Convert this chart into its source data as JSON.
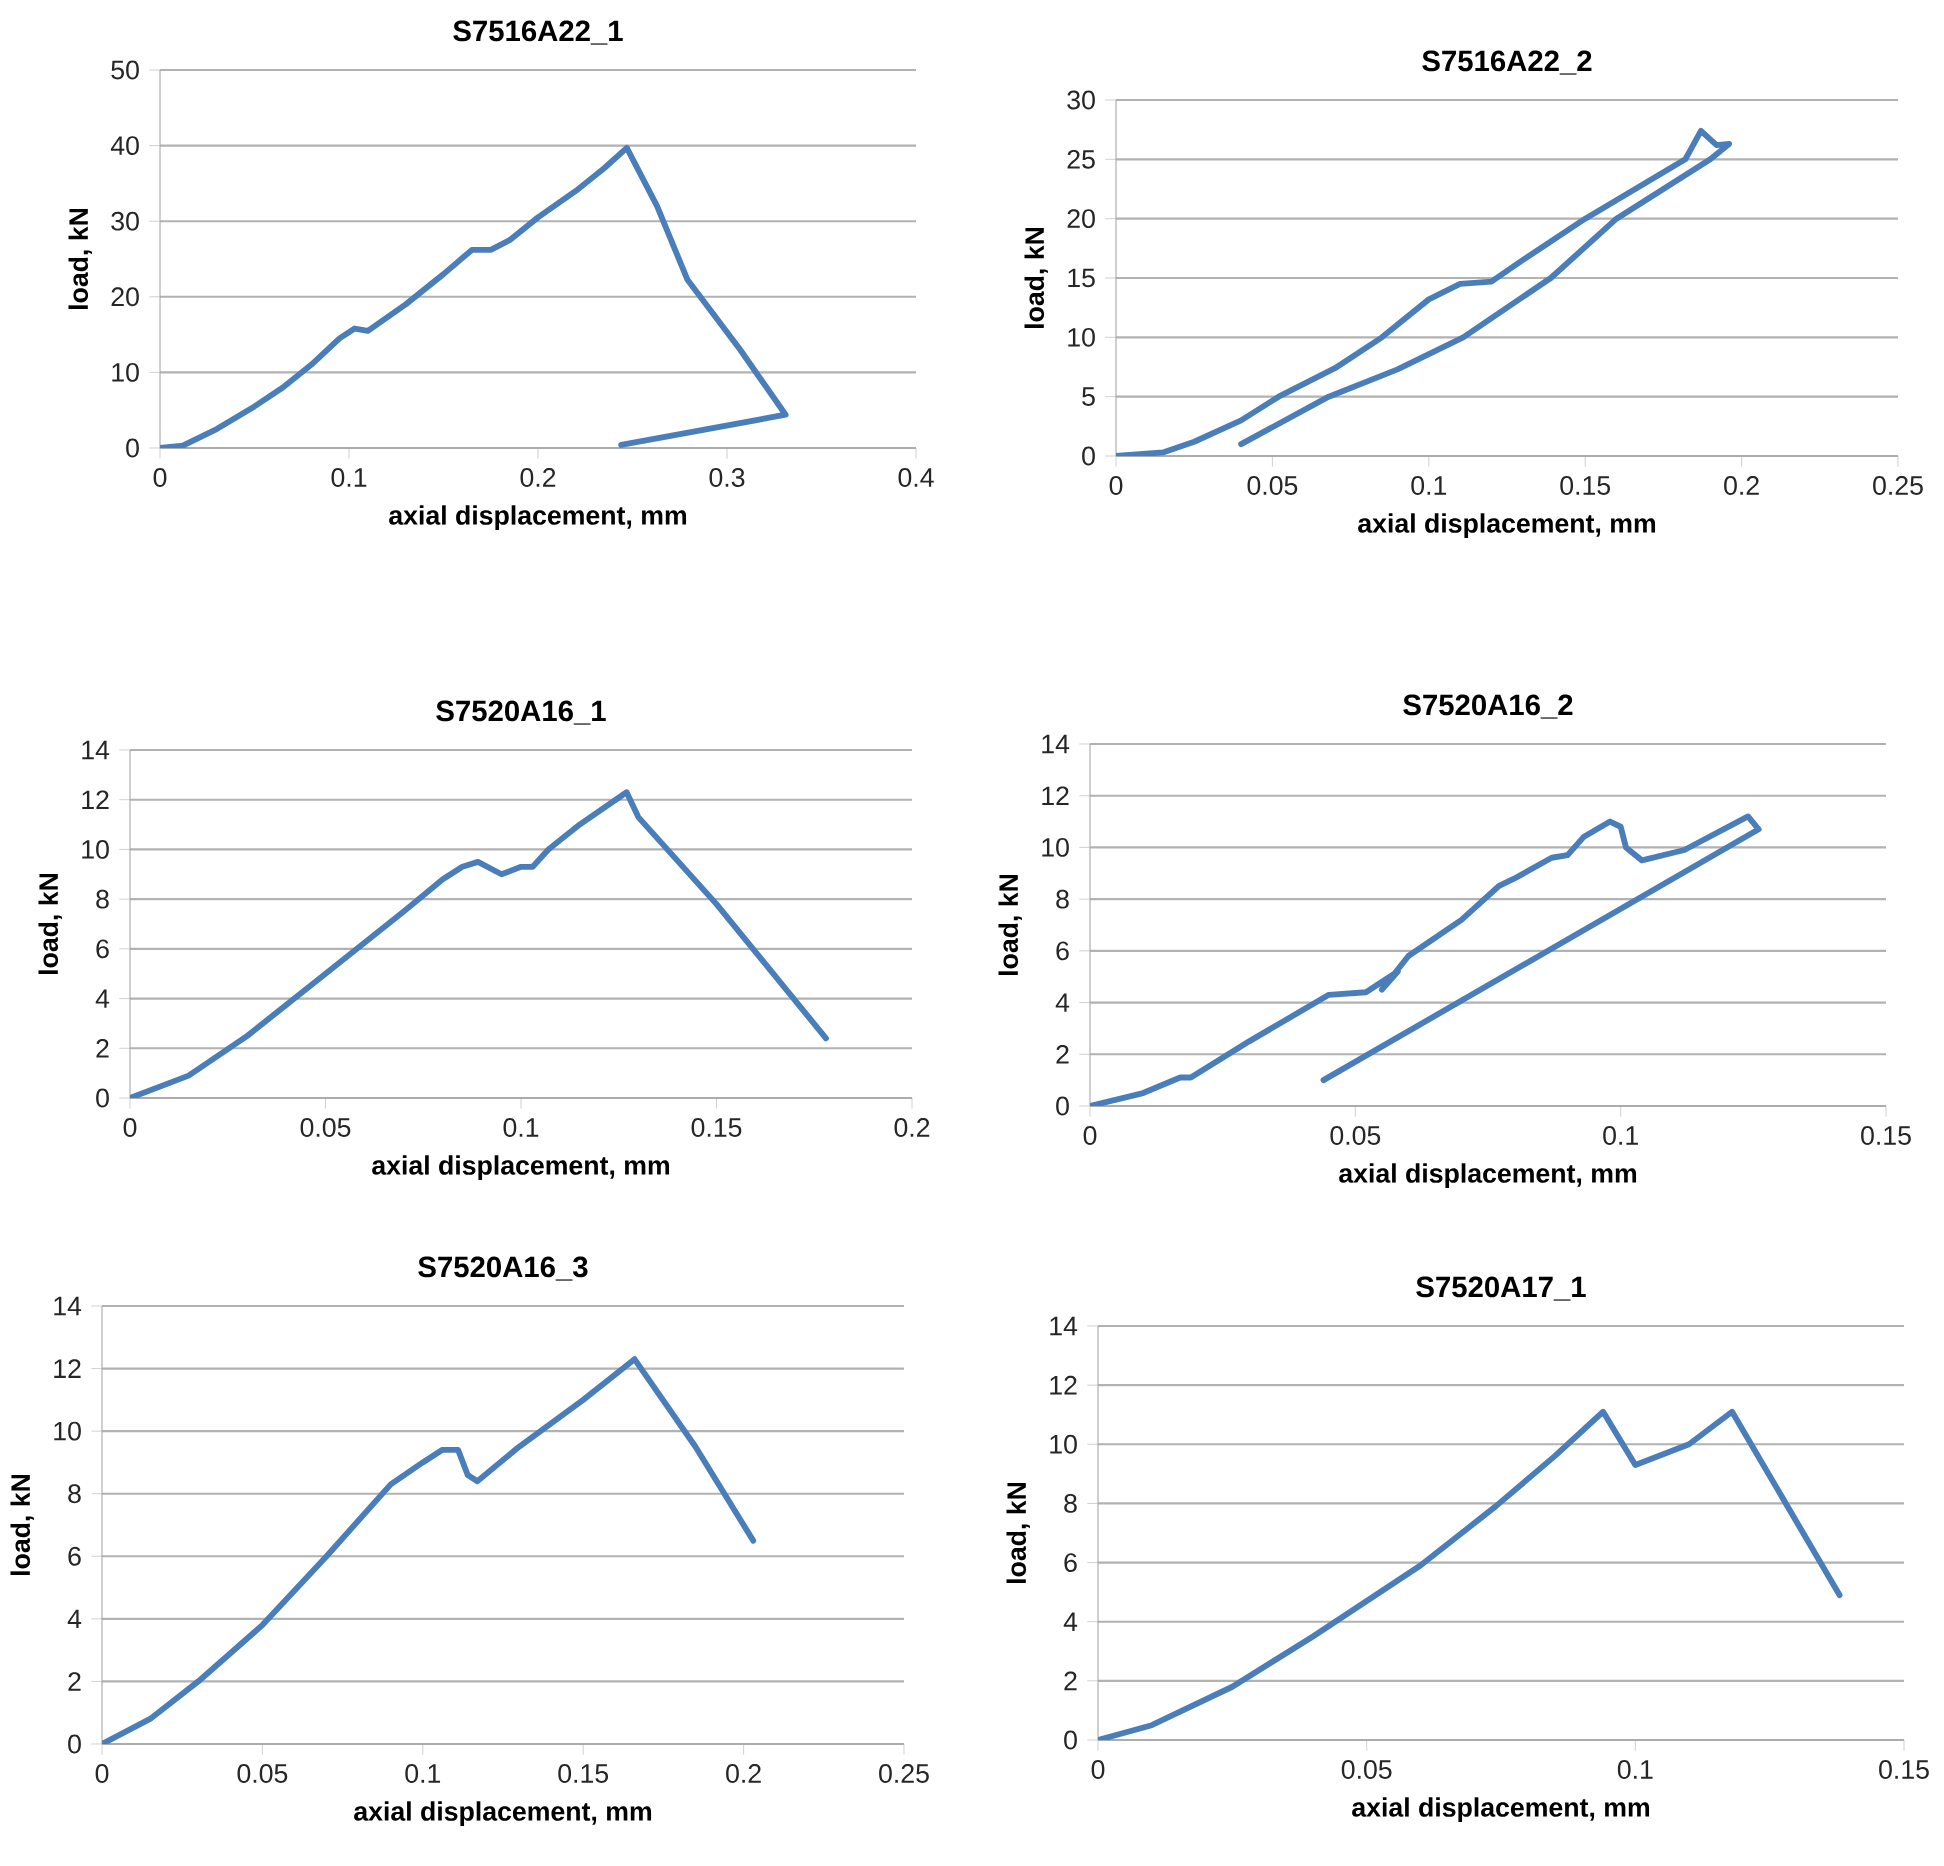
{
  "chart_data": [
    {
      "type": "line",
      "title": "S7516A22_1",
      "xlabel": "axial displacement, mm",
      "ylabel": "load, kN",
      "xlim": [
        0,
        0.4
      ],
      "ylim": [
        0,
        50
      ],
      "xticks": [
        0,
        0.1,
        0.2,
        0.3,
        0.4
      ],
      "yticks": [
        0,
        10,
        20,
        30,
        40,
        50
      ],
      "grid": "y",
      "series": [
        {
          "color": "#4a7ebb",
          "x": [
            0,
            0.012,
            0.03,
            0.05,
            0.065,
            0.08,
            0.095,
            0.103,
            0.11,
            0.13,
            0.15,
            0.165,
            0.175,
            0.185,
            0.2,
            0.22,
            0.235,
            0.247,
            0.263,
            0.279,
            0.307,
            0.331,
            0.244
          ],
          "values": [
            0,
            0.3,
            2.5,
            5.5,
            8,
            11,
            14.5,
            15.8,
            15.5,
            19,
            23,
            26.2,
            26.2,
            27.5,
            30.5,
            34,
            37,
            39.7,
            32,
            22.3,
            13,
            4.4,
            0.4
          ]
        }
      ]
    },
    {
      "type": "line",
      "title": "S7516A22_2",
      "xlabel": "axial displacement, mm",
      "ylabel": "load, kN",
      "xlim": [
        0,
        0.25
      ],
      "ylim": [
        0,
        30
      ],
      "xticks": [
        0,
        0.05,
        0.1,
        0.15,
        0.2,
        0.25
      ],
      "yticks": [
        0,
        5,
        10,
        15,
        20,
        25,
        30
      ],
      "grid": "y",
      "series": [
        {
          "color": "#4a7ebb",
          "x": [
            0,
            0.015,
            0.025,
            0.04,
            0.052,
            0.07,
            0.085,
            0.1,
            0.11,
            0.12,
            0.13,
            0.15,
            0.182,
            0.187,
            0.192,
            0.196,
            0.19,
            0.16,
            0.139,
            0.111,
            0.09,
            0.068,
            0.04
          ],
          "values": [
            0,
            0.3,
            1.2,
            3,
            5,
            7.4,
            10,
            13.2,
            14.5,
            14.7,
            16.5,
            20,
            25,
            27.4,
            26.2,
            26.3,
            25,
            20,
            15,
            10,
            7.3,
            5,
            1
          ]
        }
      ]
    },
    {
      "type": "line",
      "title": "S7520A16_1",
      "xlabel": "axial displacement, mm",
      "ylabel": "load, kN",
      "xlim": [
        0,
        0.2
      ],
      "ylim": [
        0,
        14
      ],
      "xticks": [
        0,
        0.05,
        0.1,
        0.15,
        0.2
      ],
      "yticks": [
        0,
        2,
        4,
        6,
        8,
        10,
        12,
        14
      ],
      "grid": "y",
      "series": [
        {
          "color": "#4a7ebb",
          "x": [
            0,
            0.015,
            0.03,
            0.05,
            0.07,
            0.08,
            0.085,
            0.089,
            0.095,
            0.1,
            0.103,
            0.107,
            0.115,
            0.127,
            0.13,
            0.15,
            0.178
          ],
          "values": [
            0,
            0.9,
            2.5,
            5,
            7.5,
            8.8,
            9.3,
            9.5,
            9,
            9.3,
            9.3,
            10,
            11,
            12.3,
            11.3,
            7.8,
            2.4
          ]
        }
      ]
    },
    {
      "type": "line",
      "title": "S7520A16_2",
      "xlabel": "axial displacement, mm",
      "ylabel": "load, kN",
      "xlim": [
        0,
        0.15
      ],
      "ylim": [
        0,
        14
      ],
      "xticks": [
        0,
        0.05,
        0.1,
        0.15
      ],
      "yticks": [
        0,
        2,
        4,
        6,
        8,
        10,
        12,
        14
      ],
      "grid": "y",
      "series": [
        {
          "color": "#4a7ebb",
          "x": [
            0,
            0.01,
            0.017,
            0.019,
            0.03,
            0.045,
            0.052,
            0.058,
            0.055,
            0.06,
            0.07,
            0.077,
            0.08,
            0.087,
            0.09,
            0.093,
            0.098,
            0.1,
            0.101,
            0.104,
            0.112,
            0.124,
            0.126,
            0.044
          ],
          "values": [
            0,
            0.5,
            1.1,
            1.1,
            2.5,
            4.3,
            4.4,
            5.2,
            4.5,
            5.8,
            7.2,
            8.5,
            8.8,
            9.6,
            9.7,
            10.4,
            11,
            10.8,
            10,
            9.5,
            9.9,
            11.2,
            10.7,
            1
          ]
        }
      ]
    },
    {
      "type": "line",
      "title": "S7520A16_3",
      "xlabel": "axial displacement, mm",
      "ylabel": "load, kN",
      "xlim": [
        0,
        0.25
      ],
      "ylim": [
        0,
        14
      ],
      "xticks": [
        0,
        0.05,
        0.1,
        0.15,
        0.2,
        0.25
      ],
      "yticks": [
        0,
        2,
        4,
        6,
        8,
        10,
        12,
        14
      ],
      "grid": "y",
      "series": [
        {
          "color": "#4a7ebb",
          "x": [
            0,
            0.015,
            0.03,
            0.05,
            0.07,
            0.09,
            0.1,
            0.106,
            0.111,
            0.114,
            0.117,
            0.13,
            0.15,
            0.166,
            0.185,
            0.203
          ],
          "values": [
            0,
            0.8,
            2,
            3.8,
            6,
            8.3,
            9,
            9.4,
            9.4,
            8.6,
            8.4,
            9.5,
            11,
            12.3,
            9.5,
            6.5
          ]
        }
      ]
    },
    {
      "type": "line",
      "title": "S7520A17_1",
      "xlabel": "axial displacement, mm",
      "ylabel": "load, kN",
      "xlim": [
        0,
        0.15
      ],
      "ylim": [
        0,
        14
      ],
      "xticks": [
        0,
        0.05,
        0.1,
        0.15
      ],
      "yticks": [
        0,
        2,
        4,
        6,
        8,
        10,
        12,
        14
      ],
      "grid": "y",
      "series": [
        {
          "color": "#4a7ebb",
          "x": [
            0,
            0.01,
            0.025,
            0.04,
            0.05,
            0.06,
            0.074,
            0.085,
            0.094,
            0.1,
            0.11,
            0.118,
            0.138
          ],
          "values": [
            0,
            0.5,
            1.8,
            3.5,
            4.7,
            5.9,
            7.9,
            9.6,
            11.1,
            9.3,
            10,
            11.1,
            4.9
          ]
        }
      ]
    }
  ]
}
